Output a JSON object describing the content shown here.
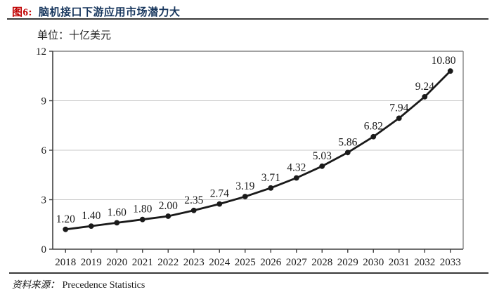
{
  "header": {
    "figure_label": "图6:",
    "title": "脑机接口下游应用市场潜力大"
  },
  "unit_label": "单位：十亿美元",
  "source": {
    "prefix": "资料来源：",
    "text": "Precedence Statistics"
  },
  "colors": {
    "figure_label_red": "#c00000",
    "title_navy": "#17365d",
    "rule_dark": "#3a3a3a"
  },
  "chart_data": {
    "type": "line",
    "title": "",
    "xlabel": "",
    "ylabel": "",
    "categories": [
      "2018",
      "2019",
      "2020",
      "2021",
      "2022",
      "2023",
      "2024",
      "2025",
      "2026",
      "2027",
      "2028",
      "2029",
      "2030",
      "2031",
      "2032",
      "2033"
    ],
    "values": [
      1.2,
      1.4,
      1.6,
      1.8,
      2.0,
      2.35,
      2.74,
      3.19,
      3.71,
      4.32,
      5.03,
      5.86,
      6.82,
      7.94,
      9.24,
      10.8
    ],
    "value_labels": [
      "1.20",
      "1.40",
      "1.60",
      "1.80",
      "2.00",
      "2.35",
      "2.74",
      "3.19",
      "3.71",
      "4.32",
      "5.03",
      "5.86",
      "6.82",
      "7.94",
      "9.24",
      "10.80"
    ],
    "ylim": [
      0,
      12
    ],
    "yticks": [
      0,
      3,
      6,
      9,
      12
    ],
    "grid": "horizontal",
    "legend": "none",
    "line_color": "#1a1a1a",
    "marker_color": "#1a1a1a",
    "grid_color": "#c9c9c9",
    "axis_color": "#404040",
    "border_color": "#848484"
  }
}
